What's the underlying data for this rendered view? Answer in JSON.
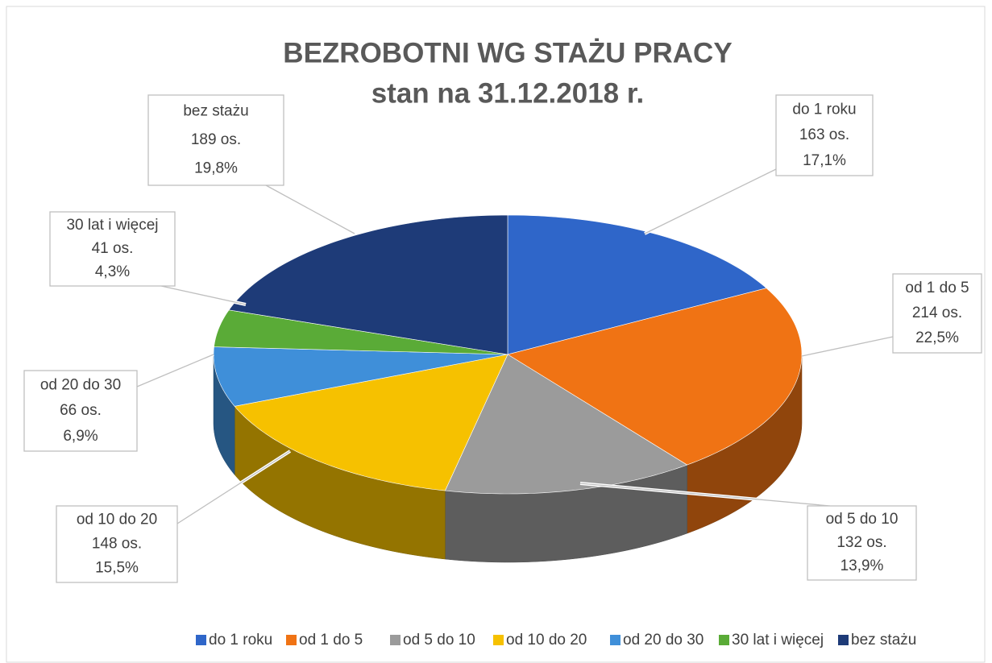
{
  "chart_data": {
    "type": "pie3d",
    "title": "BEZROBOTNI WG STAŻU PRACY",
    "subtitle": "stan na 31.12.2018 r.",
    "categories": [
      "do 1 roku",
      "od 1 do 5",
      "od 5 do 10",
      "od 10 do 20",
      "od 20 do 30",
      "30 lat i więcej",
      "bez stażu"
    ],
    "values": [
      163,
      214,
      132,
      148,
      66,
      41,
      189
    ],
    "value_labels": [
      "163 os.",
      "214 os.",
      "132 os.",
      "148 os.",
      "66 os.",
      "41 os.",
      "189 os."
    ],
    "percents": [
      17.1,
      22.5,
      13.9,
      15.5,
      6.9,
      4.3,
      19.8
    ],
    "percent_labels": [
      "17,1%",
      "22,5%",
      "13,9%",
      "15,5%",
      "6,9%",
      "4,3%",
      "19,8%"
    ],
    "colors": [
      "#2f66c9",
      "#f07314",
      "#9b9b9b",
      "#f6c100",
      "#3f8fd9",
      "#5aab37",
      "#1e3b78"
    ],
    "legend": "bottom"
  }
}
